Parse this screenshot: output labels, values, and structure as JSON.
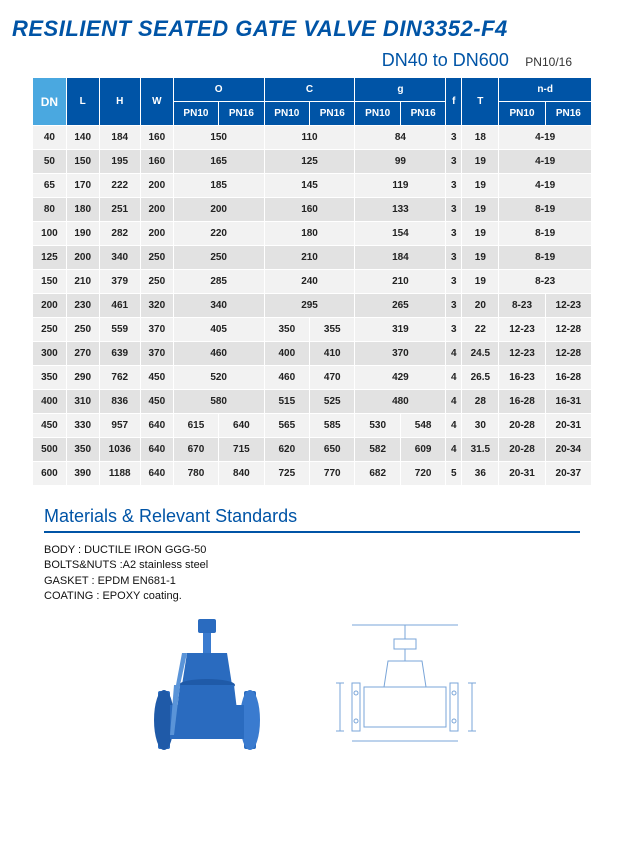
{
  "title": "RESILIENT SEATED GATE VALVE DIN3352-F4",
  "subtitle": {
    "range": "DN40 to DN600",
    "pn": "PN10/16"
  },
  "table": {
    "head1": {
      "DN": "DN",
      "L": "L",
      "H": "H",
      "W": "W",
      "O": "O",
      "C": "C",
      "g": "g",
      "f": "f",
      "T": "T",
      "nd": "n-d"
    },
    "head2": {
      "PN10": "PN10",
      "PN16": "PN16"
    },
    "rows": [
      {
        "DN": "40",
        "L": "140",
        "H": "184",
        "W": "160",
        "O1": "150",
        "O2": null,
        "C1": "110",
        "C2": null,
        "g1": "84",
        "g2": null,
        "f": "3",
        "T": "18",
        "nd1": "4-19",
        "nd2": null
      },
      {
        "DN": "50",
        "L": "150",
        "H": "195",
        "W": "160",
        "O1": "165",
        "O2": null,
        "C1": "125",
        "C2": null,
        "g1": "99",
        "g2": null,
        "f": "3",
        "T": "19",
        "nd1": "4-19",
        "nd2": null
      },
      {
        "DN": "65",
        "L": "170",
        "H": "222",
        "W": "200",
        "O1": "185",
        "O2": null,
        "C1": "145",
        "C2": null,
        "g1": "119",
        "g2": null,
        "f": "3",
        "T": "19",
        "nd1": "4-19",
        "nd2": null
      },
      {
        "DN": "80",
        "L": "180",
        "H": "251",
        "W": "200",
        "O1": "200",
        "O2": null,
        "C1": "160",
        "C2": null,
        "g1": "133",
        "g2": null,
        "f": "3",
        "T": "19",
        "nd1": "8-19",
        "nd2": null
      },
      {
        "DN": "100",
        "L": "190",
        "H": "282",
        "W": "200",
        "O1": "220",
        "O2": null,
        "C1": "180",
        "C2": null,
        "g1": "154",
        "g2": null,
        "f": "3",
        "T": "19",
        "nd1": "8-19",
        "nd2": null
      },
      {
        "DN": "125",
        "L": "200",
        "H": "340",
        "W": "250",
        "O1": "250",
        "O2": null,
        "C1": "210",
        "C2": null,
        "g1": "184",
        "g2": null,
        "f": "3",
        "T": "19",
        "nd1": "8-19",
        "nd2": null
      },
      {
        "DN": "150",
        "L": "210",
        "H": "379",
        "W": "250",
        "O1": "285",
        "O2": null,
        "C1": "240",
        "C2": null,
        "g1": "210",
        "g2": null,
        "f": "3",
        "T": "19",
        "nd1": "8-23",
        "nd2": null
      },
      {
        "DN": "200",
        "L": "230",
        "H": "461",
        "W": "320",
        "O1": "340",
        "O2": null,
        "C1": "295",
        "C2": null,
        "g1": "265",
        "g2": null,
        "f": "3",
        "T": "20",
        "nd1": "8-23",
        "nd2": "12-23"
      },
      {
        "DN": "250",
        "L": "250",
        "H": "559",
        "W": "370",
        "O1": "405",
        "O2": null,
        "C1": "350",
        "C2": "355",
        "g1": "319",
        "g2": null,
        "f": "3",
        "T": "22",
        "nd1": "12-23",
        "nd2": "12-28"
      },
      {
        "DN": "300",
        "L": "270",
        "H": "639",
        "W": "370",
        "O1": "460",
        "O2": null,
        "C1": "400",
        "C2": "410",
        "g1": "370",
        "g2": null,
        "f": "4",
        "T": "24.5",
        "nd1": "12-23",
        "nd2": "12-28"
      },
      {
        "DN": "350",
        "L": "290",
        "H": "762",
        "W": "450",
        "O1": "520",
        "O2": null,
        "C1": "460",
        "C2": "470",
        "g1": "429",
        "g2": null,
        "f": "4",
        "T": "26.5",
        "nd1": "16-23",
        "nd2": "16-28"
      },
      {
        "DN": "400",
        "L": "310",
        "H": "836",
        "W": "450",
        "O1": "580",
        "O2": null,
        "C1": "515",
        "C2": "525",
        "g1": "480",
        "g2": null,
        "f": "4",
        "T": "28",
        "nd1": "16-28",
        "nd2": "16-31"
      },
      {
        "DN": "450",
        "L": "330",
        "H": "957",
        "W": "640",
        "O1": "615",
        "O2": "640",
        "C1": "565",
        "C2": "585",
        "g1": "530",
        "g2": "548",
        "f": "4",
        "T": "30",
        "nd1": "20-28",
        "nd2": "20-31"
      },
      {
        "DN": "500",
        "L": "350",
        "H": "1036",
        "W": "640",
        "O1": "670",
        "O2": "715",
        "C1": "620",
        "C2": "650",
        "g1": "582",
        "g2": "609",
        "f": "4",
        "T": "31.5",
        "nd1": "20-28",
        "nd2": "20-34"
      },
      {
        "DN": "600",
        "L": "390",
        "H": "1188",
        "W": "640",
        "O1": "780",
        "O2": "840",
        "C1": "725",
        "C2": "770",
        "g1": "682",
        "g2": "720",
        "f": "5",
        "T": "36",
        "nd1": "20-31",
        "nd2": "20-37"
      }
    ]
  },
  "section": "Materials & Relevant Standards",
  "materials": [
    "BODY : DUCTILE IRON GGG-50",
    "BOLTS&NUTS :A2 stainless steel",
    "GASKET : EPDM  EN681-1",
    "COATING : EPOXY coating."
  ],
  "colors": {
    "brand": "#0054a6",
    "head_bg": "#0054a6",
    "dn_bg": "#4aa8e0",
    "row_odd": "#f2f2f2",
    "row_even": "#e2e2e2",
    "valve_body": "#2a6bbf",
    "valve_hi": "#5a94d8",
    "schematic": "#7aa5d8"
  }
}
